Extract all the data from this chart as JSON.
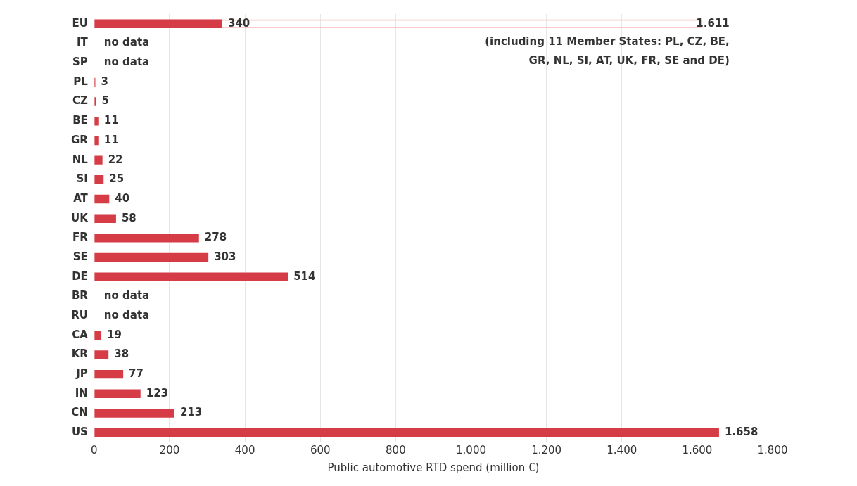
{
  "chart_data": {
    "type": "bar",
    "orientation": "horizontal",
    "xlabel": "Public automotive RTD spend (million €)",
    "categories": [
      "EU",
      "IT",
      "SP",
      "PL",
      "CZ",
      "BE",
      "GR",
      "NL",
      "SI",
      "AT",
      "UK",
      "FR",
      "SE",
      "DE",
      "BR",
      "RU",
      "CA",
      "KR",
      "JP",
      "IN",
      "CN",
      "US"
    ],
    "series": [
      {
        "color": "#f6cccc",
        "values": [
          1611,
          null,
          null,
          null,
          null,
          null,
          null,
          null,
          null,
          null,
          null,
          null,
          null,
          null,
          null,
          null,
          null,
          null,
          null,
          null,
          null,
          null
        ],
        "value_labels": [
          "1.611",
          null,
          null,
          null,
          null,
          null,
          null,
          null,
          null,
          null,
          null,
          null,
          null,
          null,
          null,
          null,
          null,
          null,
          null,
          null,
          null,
          null
        ]
      },
      {
        "color": "#d63c46",
        "values": [
          340,
          null,
          null,
          3,
          5,
          11,
          11,
          22,
          25,
          40,
          58,
          278,
          303,
          514,
          null,
          null,
          19,
          38,
          77,
          123,
          213,
          1658
        ],
        "value_labels": [
          "340",
          "no data",
          "no data",
          "3",
          "5",
          "11",
          "11",
          "22",
          "25",
          "40",
          "58",
          "278",
          "303",
          "514",
          "no data",
          "no data",
          "19",
          "38",
          "77",
          "123",
          "213",
          "1.658"
        ]
      }
    ],
    "xlim": [
      0,
      1800
    ],
    "xticks": [
      0,
      200,
      400,
      600,
      800,
      {
        "value": 1000,
        "label": "1.000"
      },
      {
        "value": 1200,
        "label": "1.200"
      },
      {
        "value": 1400,
        "label": "1.400"
      },
      {
        "value": 1600,
        "label": "1.600"
      },
      {
        "value": 1800,
        "label": "1.800"
      }
    ],
    "grid": "x",
    "legend": false,
    "annotations": [
      "(including 11 Member States: PL, CZ, BE, GR, NL, SI, AT, UK, FR, SE and DE)"
    ]
  }
}
